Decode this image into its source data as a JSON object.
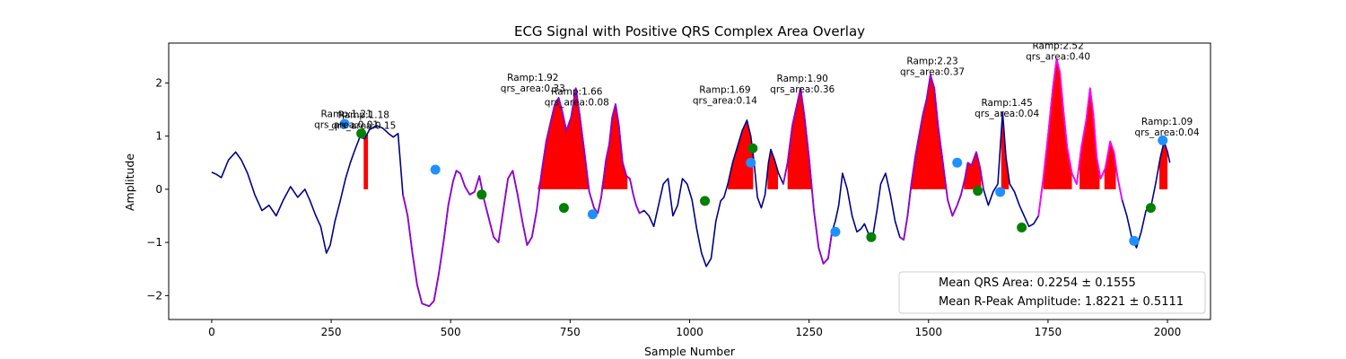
{
  "chart_data": {
    "type": "line",
    "title": "ECG Signal with Positive QRS Complex Area Overlay",
    "xlabel": "Sample Number",
    "ylabel": "Amplitude",
    "xlim": [
      -90,
      2090
    ],
    "ylim": [
      -2.45,
      2.75
    ],
    "xticks": [
      0,
      250,
      500,
      750,
      1000,
      1250,
      1500,
      1750,
      2000
    ],
    "yticks": [
      -2,
      -1,
      0,
      1,
      2
    ],
    "grid": false,
    "colors": {
      "signal": "#00008b",
      "qrs_a": "#9400d3",
      "qrs_b": "#ff00ff",
      "area": "#ff0000",
      "q_marker": "#1e90ff",
      "s_marker": "#008000"
    },
    "signal_keypoints": [
      [
        0,
        0.32
      ],
      [
        10,
        0.28
      ],
      [
        20,
        0.22
      ],
      [
        35,
        0.55
      ],
      [
        50,
        0.7
      ],
      [
        62,
        0.55
      ],
      [
        75,
        0.3
      ],
      [
        90,
        -0.1
      ],
      [
        105,
        -0.4
      ],
      [
        120,
        -0.3
      ],
      [
        135,
        -0.5
      ],
      [
        150,
        -0.2
      ],
      [
        165,
        0.05
      ],
      [
        180,
        -0.15
      ],
      [
        195,
        0.0
      ],
      [
        205,
        -0.2
      ],
      [
        218,
        -0.5
      ],
      [
        228,
        -0.7
      ],
      [
        240,
        -1.2
      ],
      [
        248,
        -1.05
      ],
      [
        258,
        -0.6
      ],
      [
        268,
        -0.25
      ],
      [
        280,
        0.2
      ],
      [
        290,
        0.5
      ],
      [
        300,
        0.75
      ],
      [
        310,
        0.98
      ],
      [
        320,
        0.95
      ],
      [
        330,
        1.12
      ],
      [
        345,
        1.2
      ],
      [
        358,
        1.15
      ],
      [
        370,
        1.05
      ],
      [
        380,
        0.98
      ],
      [
        390,
        1.05
      ],
      [
        400,
        -0.1
      ],
      [
        410,
        -0.5
      ],
      [
        420,
        -1.2
      ],
      [
        430,
        -1.8
      ],
      [
        440,
        -2.15
      ],
      [
        455,
        -2.2
      ],
      [
        465,
        -2.1
      ],
      [
        475,
        -1.6
      ],
      [
        485,
        -1.0
      ],
      [
        495,
        -0.3
      ],
      [
        505,
        0.15
      ],
      [
        512,
        0.35
      ],
      [
        520,
        0.3
      ],
      [
        530,
        0.05
      ],
      [
        540,
        -0.1
      ],
      [
        550,
        -0.05
      ],
      [
        560,
        0.25
      ],
      [
        570,
        -0.2
      ],
      [
        580,
        -0.55
      ],
      [
        590,
        -0.9
      ],
      [
        600,
        -1.0
      ],
      [
        610,
        -0.4
      ],
      [
        620,
        0.2
      ],
      [
        630,
        0.35
      ],
      [
        640,
        -0.1
      ],
      [
        650,
        -0.6
      ],
      [
        660,
        -1.05
      ],
      [
        670,
        -0.9
      ],
      [
        680,
        -0.4
      ],
      [
        690,
        0.3
      ],
      [
        700,
        0.9
      ],
      [
        710,
        1.3
      ],
      [
        718,
        1.6
      ],
      [
        726,
        1.72
      ],
      [
        734,
        1.45
      ],
      [
        742,
        1.1
      ],
      [
        752,
        1.35
      ],
      [
        762,
        1.9
      ],
      [
        770,
        1.4
      ],
      [
        780,
        0.7
      ],
      [
        790,
        -0.05
      ],
      [
        800,
        -0.35
      ],
      [
        808,
        -0.45
      ],
      [
        815,
        -0.15
      ],
      [
        825,
        0.55
      ],
      [
        832,
        0.85
      ],
      [
        838,
        1.35
      ],
      [
        845,
        1.6
      ],
      [
        852,
        1.2
      ],
      [
        860,
        0.5
      ],
      [
        868,
        0.25
      ],
      [
        875,
        0.2
      ],
      [
        882,
        -0.1
      ],
      [
        888,
        -0.3
      ],
      [
        895,
        -0.45
      ],
      [
        905,
        -0.4
      ],
      [
        915,
        -0.5
      ],
      [
        925,
        -0.7
      ],
      [
        935,
        -0.3
      ],
      [
        945,
        0.1
      ],
      [
        955,
        0.2
      ],
      [
        965,
        -0.5
      ],
      [
        975,
        -0.3
      ],
      [
        985,
        0.2
      ],
      [
        995,
        0.1
      ],
      [
        1005,
        -0.2
      ],
      [
        1015,
        -0.75
      ],
      [
        1025,
        -1.2
      ],
      [
        1035,
        -1.45
      ],
      [
        1045,
        -1.3
      ],
      [
        1055,
        -0.6
      ],
      [
        1065,
        -0.22
      ],
      [
        1072,
        -0.15
      ],
      [
        1080,
        0.1
      ],
      [
        1090,
        0.5
      ],
      [
        1100,
        0.8
      ],
      [
        1110,
        1.1
      ],
      [
        1120,
        1.3
      ],
      [
        1128,
        1.0
      ],
      [
        1135,
        0.5
      ],
      [
        1142,
        -0.15
      ],
      [
        1150,
        -0.35
      ],
      [
        1158,
        -0.1
      ],
      [
        1165,
        0.5
      ],
      [
        1170,
        0.75
      ],
      [
        1178,
        0.55
      ],
      [
        1186,
        0.3
      ],
      [
        1196,
        0.1
      ],
      [
        1205,
        0.5
      ],
      [
        1215,
        1.2
      ],
      [
        1225,
        1.6
      ],
      [
        1232,
        1.9
      ],
      [
        1240,
        1.4
      ],
      [
        1250,
        0.6
      ],
      [
        1260,
        -0.4
      ],
      [
        1270,
        -1.1
      ],
      [
        1280,
        -1.4
      ],
      [
        1290,
        -1.3
      ],
      [
        1298,
        -0.8
      ],
      [
        1305,
        -0.6
      ],
      [
        1312,
        -0.3
      ],
      [
        1320,
        0.3
      ],
      [
        1330,
        0.0
      ],
      [
        1340,
        -0.5
      ],
      [
        1350,
        -0.8
      ],
      [
        1358,
        -0.75
      ],
      [
        1366,
        -0.65
      ],
      [
        1375,
        -0.85
      ],
      [
        1383,
        -0.9
      ],
      [
        1392,
        -0.4
      ],
      [
        1400,
        0.1
      ],
      [
        1410,
        0.3
      ],
      [
        1420,
        -0.1
      ],
      [
        1430,
        -0.6
      ],
      [
        1440,
        -0.9
      ],
      [
        1448,
        -0.95
      ],
      [
        1456,
        -0.5
      ],
      [
        1464,
        0.1
      ],
      [
        1472,
        0.6
      ],
      [
        1480,
        1.0
      ],
      [
        1488,
        1.4
      ],
      [
        1496,
        1.7
      ],
      [
        1504,
        2.15
      ],
      [
        1512,
        1.9
      ],
      [
        1520,
        1.2
      ],
      [
        1530,
        0.5
      ],
      [
        1540,
        -0.2
      ],
      [
        1550,
        -0.5
      ],
      [
        1560,
        -0.3
      ],
      [
        1568,
        -0.1
      ],
      [
        1576,
        0.2
      ],
      [
        1582,
        0.5
      ],
      [
        1590,
        0.45
      ],
      [
        1600,
        0.7
      ],
      [
        1608,
        0.4
      ],
      [
        1615,
        0.0
      ],
      [
        1625,
        -0.3
      ],
      [
        1635,
        -0.05
      ],
      [
        1645,
        0.1
      ],
      [
        1655,
        1.45
      ],
      [
        1662,
        0.6
      ],
      [
        1670,
        0.1
      ],
      [
        1680,
        -0.05
      ],
      [
        1690,
        -0.3
      ],
      [
        1700,
        -0.5
      ],
      [
        1710,
        -0.7
      ],
      [
        1720,
        -0.65
      ],
      [
        1730,
        -0.5
      ],
      [
        1740,
        0.2
      ],
      [
        1750,
        1.0
      ],
      [
        1760,
        1.9
      ],
      [
        1768,
        2.45
      ],
      [
        1775,
        2.2
      ],
      [
        1782,
        1.5
      ],
      [
        1790,
        0.8
      ],
      [
        1800,
        0.3
      ],
      [
        1810,
        0.1
      ],
      [
        1820,
        0.8
      ],
      [
        1830,
        1.3
      ],
      [
        1838,
        1.9
      ],
      [
        1845,
        1.4
      ],
      [
        1852,
        0.6
      ],
      [
        1860,
        0.2
      ],
      [
        1870,
        0.4
      ],
      [
        1880,
        0.9
      ],
      [
        1888,
        0.7
      ],
      [
        1896,
        0.2
      ],
      [
        1905,
        -0.2
      ],
      [
        1915,
        -0.5
      ],
      [
        1925,
        -0.9
      ],
      [
        1935,
        -1.1
      ],
      [
        1945,
        -0.8
      ],
      [
        1955,
        -0.4
      ],
      [
        1965,
        -0.35
      ],
      [
        1975,
        0.1
      ],
      [
        1985,
        0.6
      ],
      [
        1993,
        0.9
      ],
      [
        2000,
        0.7
      ],
      [
        2005,
        0.5
      ]
    ],
    "qrs_segments": [
      {
        "start": 400,
        "end": 640,
        "color": "qrs_a"
      },
      {
        "start": 640,
        "end": 900,
        "color": "qrs_a"
      },
      {
        "start": 1196,
        "end": 1298,
        "color": "qrs_a"
      },
      {
        "start": 1440,
        "end": 1615,
        "color": "qrs_a"
      },
      {
        "start": 1730,
        "end": 1905,
        "color": "qrs_b"
      }
    ],
    "area_overlays": [
      {
        "start": 318,
        "end": 327
      },
      {
        "start": 402,
        "end": 494
      },
      {
        "start": 682,
        "end": 790
      },
      {
        "start": 815,
        "end": 870
      },
      {
        "start": 1080,
        "end": 1133
      },
      {
        "start": 1163,
        "end": 1185
      },
      {
        "start": 1205,
        "end": 1255
      },
      {
        "start": 1462,
        "end": 1536
      },
      {
        "start": 1574,
        "end": 1610
      },
      {
        "start": 1652,
        "end": 1668
      },
      {
        "start": 1740,
        "end": 1800
      },
      {
        "start": 1816,
        "end": 1858
      },
      {
        "start": 1868,
        "end": 1892
      },
      {
        "start": 1983,
        "end": 2000
      }
    ],
    "q_markers": [
      [
        278,
        1.23
      ],
      [
        468,
        0.37
      ],
      [
        797,
        -0.47
      ],
      [
        1128,
        0.5
      ],
      [
        1305,
        -0.8
      ],
      [
        1560,
        0.5
      ],
      [
        1650,
        -0.05
      ],
      [
        1930,
        -0.97
      ],
      [
        1990,
        0.92
      ]
    ],
    "s_markers": [
      [
        313,
        1.05
      ],
      [
        565,
        -0.1
      ],
      [
        737,
        -0.35
      ],
      [
        1032,
        -0.22
      ],
      [
        1132,
        0.77
      ],
      [
        1380,
        -0.9
      ],
      [
        1603,
        -0.03
      ],
      [
        1695,
        -0.72
      ],
      [
        1965,
        -0.35
      ]
    ],
    "annotations": [
      {
        "x": 282,
        "y": 1.36,
        "line1": "Ramp:1.21",
        "line2": "qrs_area:0.01"
      },
      {
        "x": 318,
        "y": 1.34,
        "line1": "Ramp:1.18",
        "line2": "qrs_area:0.15"
      },
      {
        "x": 672,
        "y": 2.04,
        "line1": "Ramp:1.92",
        "line2": "qrs_area:0.33"
      },
      {
        "x": 764,
        "y": 1.78,
        "line1": "Ramp:1.66",
        "line2": "qrs_area:0.08"
      },
      {
        "x": 1074,
        "y": 1.81,
        "line1": "Ramp:1.69",
        "line2": "qrs_area:0.14"
      },
      {
        "x": 1236,
        "y": 2.02,
        "line1": "Ramp:1.90",
        "line2": "qrs_area:0.36"
      },
      {
        "x": 1508,
        "y": 2.35,
        "line1": "Ramp:2.23",
        "line2": "qrs_area:0.37"
      },
      {
        "x": 1664,
        "y": 1.57,
        "line1": "Ramp:1.45",
        "line2": "qrs_area:0.04"
      },
      {
        "x": 1771,
        "y": 2.64,
        "line1": "Ramp:2.52",
        "line2": "qrs_area:0.40"
      },
      {
        "x": 1999,
        "y": 1.21,
        "line1": "Ramp:1.09",
        "line2": "qrs_area:0.04"
      }
    ],
    "legend": {
      "placement": "lower-right",
      "entries": [
        "Mean QRS Area: 0.2254 ± 0.1555",
        "Mean R-Peak Amplitude: 1.8221 ± 0.5111"
      ]
    }
  }
}
